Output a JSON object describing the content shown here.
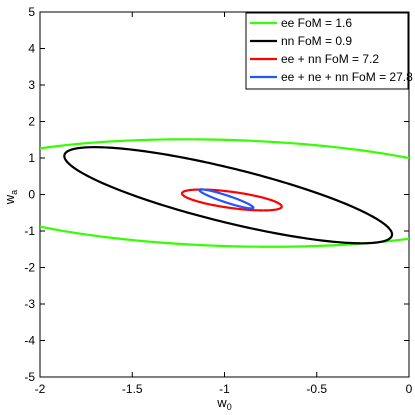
{
  "chart_data": {
    "type": "line",
    "title": "",
    "xlabel": "w",
    "xlabel_sub": "0",
    "ylabel": "w",
    "ylabel_sub": "a",
    "xlim": [
      -2,
      0
    ],
    "ylim": [
      -5,
      5
    ],
    "xticks": [
      "-2",
      "-1.5",
      "-1",
      "-0.5",
      "0"
    ],
    "yticks": [
      "-5",
      "-4",
      "-3",
      "-2",
      "-1",
      "0",
      "1",
      "2",
      "3",
      "4",
      "5"
    ],
    "legend_position": "top-right",
    "grid": false,
    "series": [
      {
        "name": "ee FoM = 1.6",
        "color": "#33ff00",
        "ellipse": {
          "cx": -0.98,
          "cy": 0.04,
          "width": 3.2,
          "height": 2.74,
          "rotation_deg": -40.75
        }
      },
      {
        "name": "nn FoM = 0.9",
        "color": "#000000",
        "ellipse": {
          "cx": -0.98,
          "cy": -0.02,
          "width": 3.05,
          "height": 0.89,
          "rotation_deg": -58.2
        }
      },
      {
        "name": "ee + nn FoM = 7.2",
        "color": "#ff0000",
        "ellipse": {
          "cx": -0.96,
          "cy": -0.15,
          "width": 0.71,
          "height": 0.34,
          "rotation_deg": -47.6
        }
      },
      {
        "name": "ee + ne + nn FoM = 27.8",
        "color": "#2255ff",
        "ellipse": {
          "cx": -0.99,
          "cy": -0.12,
          "width": 0.59,
          "height": 0.1,
          "rotation_deg": -61.7
        }
      }
    ]
  }
}
